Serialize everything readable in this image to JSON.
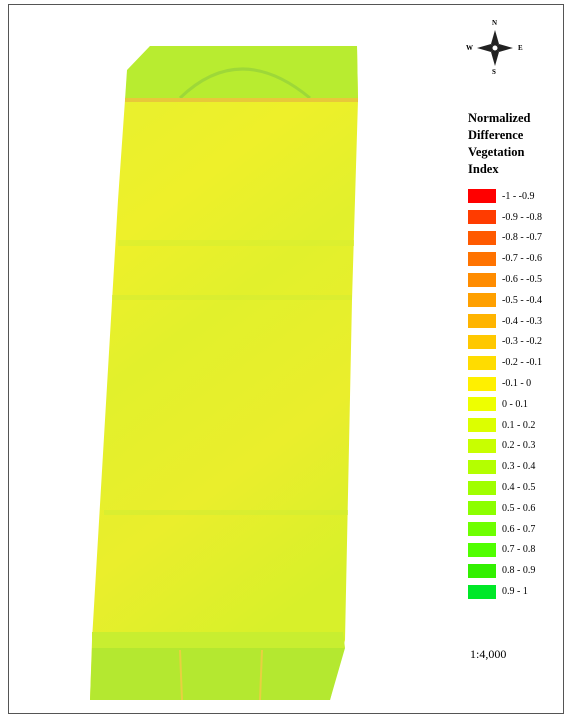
{
  "legend": {
    "title": "Normalized Difference Vegetation Index",
    "items": [
      {
        "label": "-1 - -0.9",
        "color": "#ff0000"
      },
      {
        "label": "-0.9 - -0.8",
        "color": "#ff3c00"
      },
      {
        "label": "-0.8 - -0.7",
        "color": "#ff5a00"
      },
      {
        "label": "-0.7 - -0.6",
        "color": "#ff7300"
      },
      {
        "label": "-0.6 - -0.5",
        "color": "#ff8c00"
      },
      {
        "label": "-0.5 - -0.4",
        "color": "#ffa000"
      },
      {
        "label": "-0.4 - -0.3",
        "color": "#ffb400"
      },
      {
        "label": "-0.3 - -0.2",
        "color": "#ffc800"
      },
      {
        "label": "-0.2 - -0.1",
        "color": "#ffdc00"
      },
      {
        "label": "-0.1 - 0",
        "color": "#fff000"
      },
      {
        "label": "0 - 0.1",
        "color": "#eeff00"
      },
      {
        "label": "0.1 - 0.2",
        "color": "#dcff00"
      },
      {
        "label": "0.2 - 0.3",
        "color": "#c8ff00"
      },
      {
        "label": "0.3 - 0.4",
        "color": "#b4ff00"
      },
      {
        "label": "0.4 - 0.5",
        "color": "#a0ff00"
      },
      {
        "label": "0.5 - 0.6",
        "color": "#8cff00"
      },
      {
        "label": "0.6 - 0.7",
        "color": "#6eff00"
      },
      {
        "label": "0.7 - 0.8",
        "color": "#50ff00"
      },
      {
        "label": "0.8 - 0.9",
        "color": "#32f000"
      },
      {
        "label": "0.9 - 1",
        "color": "#00e828"
      }
    ]
  },
  "compass": {
    "n": "N",
    "s": "S",
    "e": "E",
    "w": "W"
  },
  "scale": "1:4,000"
}
